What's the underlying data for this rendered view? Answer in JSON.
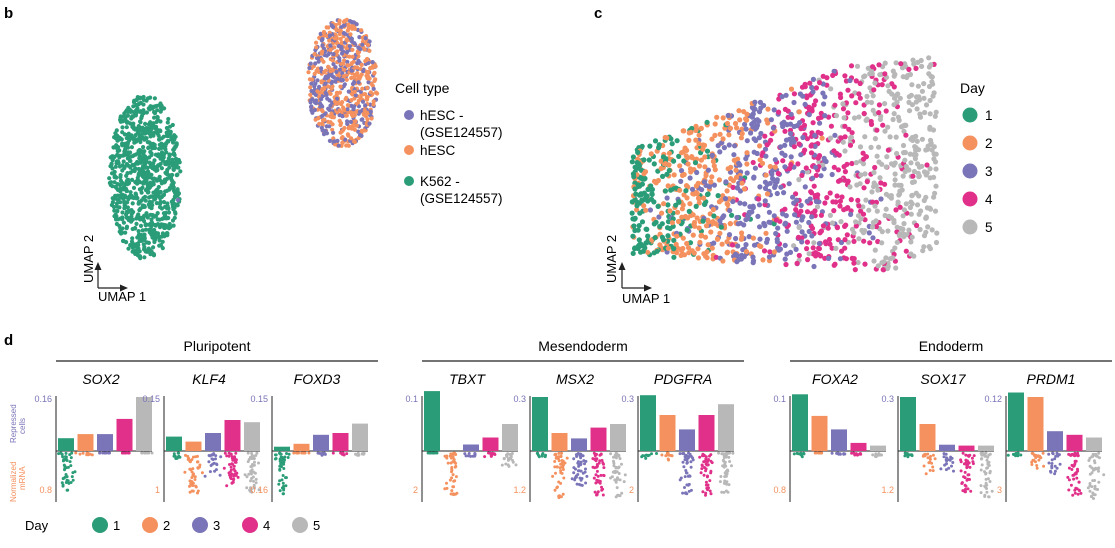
{
  "colors": {
    "green": "#2a9d78",
    "orange": "#f4915e",
    "purple": "#7a74b8",
    "magenta": "#e0308a",
    "gray": "#b8b8b8",
    "axis": "#222222"
  },
  "panel_b": {
    "letter": "b",
    "xlabel": "UMAP 1",
    "ylabel": "UMAP 2",
    "legend_title": "Cell type",
    "legend": [
      {
        "lines": [
          "hESC -",
          "(GSE124557)"
        ],
        "color": "#7a74b8"
      },
      {
        "lines": [
          "hESC"
        ],
        "color": "#f4915e"
      },
      {
        "lines": [
          "K562 -",
          "(GSE124557)"
        ],
        "color": "#2a9d78"
      }
    ]
  },
  "panel_c": {
    "letter": "c",
    "xlabel": "UMAP 1",
    "ylabel": "UMAP 2",
    "legend_title": "Day",
    "legend": [
      {
        "label": "1",
        "color": "#2a9d78"
      },
      {
        "label": "2",
        "color": "#f4915e"
      },
      {
        "label": "3",
        "color": "#7a74b8"
      },
      {
        "label": "4",
        "color": "#e0308a"
      },
      {
        "label": "5",
        "color": "#b8b8b8"
      }
    ]
  },
  "panel_d": {
    "letter": "d",
    "repressed_label": [
      "Repressed",
      "cells"
    ],
    "normalized_label": [
      "Normalized",
      "mRNA"
    ],
    "day_title": "Day",
    "day_legend": [
      {
        "label": "1",
        "color": "#2a9d78"
      },
      {
        "label": "2",
        "color": "#f4915e"
      },
      {
        "label": "3",
        "color": "#7a74b8"
      },
      {
        "label": "4",
        "color": "#e0308a"
      },
      {
        "label": "5",
        "color": "#b8b8b8"
      }
    ]
  },
  "chart_data": [
    {
      "type": "scatter",
      "panel": "b",
      "xlabel": "UMAP 1",
      "ylabel": "UMAP 2",
      "series": [
        {
          "name": "hESC - (GSE124557)",
          "color": "#7a74b8",
          "region": "upper-right cluster (shared with hESC)"
        },
        {
          "name": "hESC",
          "color": "#f4915e",
          "region": "upper-right cluster"
        },
        {
          "name": "K562 - (GSE124557)",
          "color": "#2a9d78",
          "region": "left cluster"
        }
      ]
    },
    {
      "type": "scatter",
      "panel": "c",
      "xlabel": "UMAP 1",
      "ylabel": "UMAP 2",
      "series": [
        {
          "name": "1",
          "color": "#2a9d78",
          "region": "left"
        },
        {
          "name": "2",
          "color": "#f4915e",
          "region": "left-center"
        },
        {
          "name": "3",
          "color": "#7a74b8",
          "region": "center"
        },
        {
          "name": "4",
          "color": "#e0308a",
          "region": "right-center"
        },
        {
          "name": "5",
          "color": "#b8b8b8",
          "region": "right"
        }
      ]
    },
    {
      "type": "bar",
      "panel": "d",
      "categories": [
        "1",
        "2",
        "3",
        "4",
        "5"
      ],
      "groups": [
        {
          "title": "Pluripotent",
          "genes": [
            {
              "name": "SOX2",
              "bar_max": 0.16,
              "bars": [
                0.038,
                0.05,
                0.05,
                0.095,
                0.16
              ],
              "dot_min": 0.8,
              "dots": [
                [
                  0.0,
                  0.8
                ],
                [
                  0.0,
                  0.05
                ],
                [
                  0.0,
                  0.0
                ],
                [
                  0.0,
                  0.0
                ],
                [
                  0.0,
                  0.0
                ]
              ]
            },
            {
              "name": "KLF4",
              "bar_max": 0.15,
              "bars": [
                0.04,
                0.026,
                0.05,
                0.086,
                0.08
              ],
              "dot_min": 1,
              "dots": [
                [
                  0.0,
                  0.12
                ],
                [
                  0.05,
                  0.9
                ],
                [
                  0.0,
                  0.5
                ],
                [
                  0.0,
                  0.7
                ],
                [
                  0.0,
                  0.85
                ]
              ]
            },
            {
              "name": "FOXD3",
              "bar_max": 0.15,
              "bars": [
                0.012,
                0.02,
                0.045,
                0.05,
                0.076
              ],
              "dot_min": 0.16,
              "dots": [
                [
                  0.0,
                  0.9
                ],
                [
                  0.0,
                  0.0
                ],
                [
                  0.0,
                  0.05
                ],
                [
                  0.0,
                  0.05
                ],
                [
                  0.0,
                  0.08
                ]
              ]
            }
          ]
        },
        {
          "title": "Mesendoderm",
          "genes": [
            {
              "name": "TBXT",
              "bar_max": 0.1,
              "bars": [
                0.111,
                0.0,
                0.012,
                0.025,
                0.05
              ],
              "dot_min": 2,
              "dots": [
                [
                  0.0,
                  0.0
                ],
                [
                  0.0,
                  0.9
                ],
                [
                  0.0,
                  0.1
                ],
                [
                  0.0,
                  0.1
                ],
                [
                  0.0,
                  0.3
                ]
              ]
            },
            {
              "name": "MSX2",
              "bar_max": 0.3,
              "bars": [
                0.3,
                0.1,
                0.07,
                0.13,
                0.15
              ],
              "dot_min": 1.2,
              "dots": [
                [
                  0.0,
                  0.1
                ],
                [
                  0.0,
                  0.95
                ],
                [
                  0.0,
                  0.7
                ],
                [
                  0.0,
                  0.95
                ],
                [
                  0.0,
                  0.95
                ]
              ]
            },
            {
              "name": "PDGFRA",
              "bar_max": 0.3,
              "bars": [
                0.31,
                0.2,
                0.12,
                0.2,
                0.26
              ],
              "dot_min": 2,
              "dots": [
                [
                  0.0,
                  0.12
                ],
                [
                  0.0,
                  0.15
                ],
                [
                  0.0,
                  0.9
                ],
                [
                  0.0,
                  0.9
                ],
                [
                  0.0,
                  0.85
                ]
              ]
            }
          ]
        },
        {
          "title": "Endoderm",
          "genes": [
            {
              "name": "FOXA2",
              "bar_max": 0.1,
              "bars": [
                0.105,
                0.065,
                0.04,
                0.015,
                0.01
              ],
              "dot_min": 0.8,
              "dots": [
                [
                  0.0,
                  0.08
                ],
                [
                  0.0,
                  0.0
                ],
                [
                  0.0,
                  0.03
                ],
                [
                  0.0,
                  0.05
                ],
                [
                  0.0,
                  0.08
                ]
              ]
            },
            {
              "name": "SOX17",
              "bar_max": 0.3,
              "bars": [
                0.3,
                0.15,
                0.035,
                0.03,
                0.03
              ],
              "dot_min": 1.2,
              "dots": [
                [
                  0.0,
                  0.12
                ],
                [
                  0.0,
                  0.5
                ],
                [
                  0.0,
                  0.4
                ],
                [
                  0.0,
                  0.85
                ],
                [
                  0.0,
                  0.95
                ]
              ]
            },
            {
              "name": "PRDM1",
              "bar_max": 0.12,
              "bars": [
                0.13,
                0.12,
                0.044,
                0.036,
                0.03
              ],
              "dot_min": 3,
              "dots": [
                [
                  0.0,
                  0.08
                ],
                [
                  0.0,
                  0.35
                ],
                [
                  0.0,
                  0.45
                ],
                [
                  0.0,
                  0.9
                ],
                [
                  0.0,
                  0.98
                ]
              ]
            }
          ]
        }
      ]
    }
  ]
}
